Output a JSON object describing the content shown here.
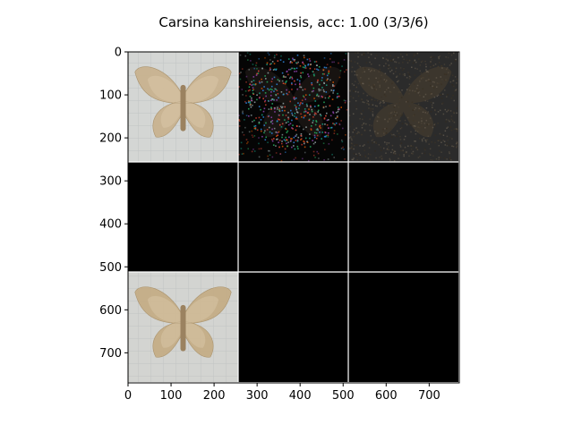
{
  "chart_data": {
    "type": "image_grid",
    "title": "Carsina kanshireiensis, acc: 1.00 (3/3/6)",
    "xlim": [
      0,
      770
    ],
    "ylim": [
      770,
      0
    ],
    "xticks": [
      0,
      100,
      200,
      300,
      400,
      500,
      600,
      700
    ],
    "yticks": [
      0,
      100,
      200,
      300,
      400,
      500,
      600,
      700
    ],
    "grid": {
      "rows": 3,
      "cols": 3,
      "cell_size": 256
    },
    "cells": [
      {
        "row": 0,
        "col": 0,
        "kind": "moth-photo",
        "bg": "#d4d6d4",
        "wing": "#c9b28e"
      },
      {
        "row": 0,
        "col": 1,
        "kind": "noise-map",
        "bg": "#050505",
        "wing": "#3a2f28"
      },
      {
        "row": 0,
        "col": 2,
        "kind": "dim-photo",
        "bg": "#2b2b2b",
        "wing": "#4a4030"
      },
      {
        "row": 1,
        "col": 0,
        "kind": "empty",
        "bg": "#000000"
      },
      {
        "row": 1,
        "col": 1,
        "kind": "empty",
        "bg": "#000000"
      },
      {
        "row": 1,
        "col": 2,
        "kind": "empty",
        "bg": "#000000"
      },
      {
        "row": 2,
        "col": 0,
        "kind": "moth-photo",
        "bg": "#d3d4d1",
        "wing": "#c4ac85"
      },
      {
        "row": 2,
        "col": 1,
        "kind": "empty",
        "bg": "#000000"
      },
      {
        "row": 2,
        "col": 2,
        "kind": "empty",
        "bg": "#000000"
      }
    ]
  }
}
